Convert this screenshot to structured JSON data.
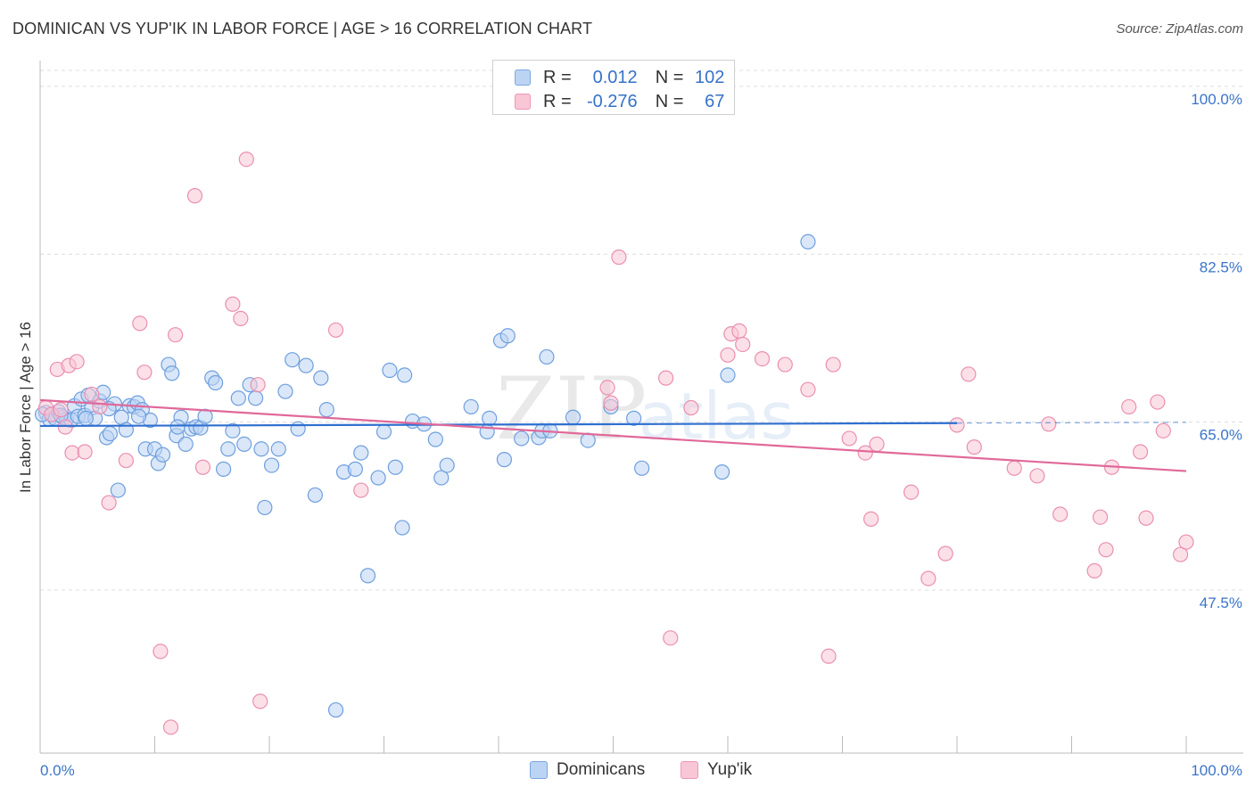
{
  "title": "DOMINICAN VS YUP'IK IN LABOR FORCE | AGE > 16 CORRELATION CHART",
  "source": "Source: ZipAtlas.com",
  "watermark": {
    "part1": "ZIP",
    "part2": "atlas"
  },
  "legend": {
    "r_label": "R =",
    "n_label": "N =",
    "rows": [
      {
        "series": "Dominicans",
        "r": "0.012",
        "n": "102"
      },
      {
        "series": "Yup'ik",
        "r": "-0.276",
        "n": "67"
      }
    ]
  },
  "bottom_legend": [
    "Dominicans",
    "Yup'ik"
  ],
  "colors": {
    "dominicans_fill": "#bcd4f4",
    "dominicans_stroke": "#6e9fde",
    "dominicans_line": "#2f6fcf",
    "yupik_fill": "#f9c6d6",
    "yupik_stroke": "#ea8fb0",
    "yupik_line": "#e0699a",
    "axis_text": "#3a74c8",
    "grid": "#dcdcdc"
  },
  "chart_data": {
    "type": "scatter",
    "title": "DOMINICAN VS YUP'IK IN LABOR FORCE | AGE > 16 CORRELATION CHART",
    "xlabel": "",
    "ylabel": "In Labor Force | Age > 16",
    "x_tick_labels": [
      "0.0%",
      "100.0%"
    ],
    "y_tick_labels": [
      "100.0%",
      "82.5%",
      "65.0%",
      "47.5%"
    ],
    "y_ticks": [
      100.0,
      82.5,
      65.0,
      47.5
    ],
    "xlim": [
      0,
      100
    ],
    "ylim": [
      30.5,
      102.5
    ],
    "series": [
      {
        "name": "Dominicans",
        "r": 0.012,
        "n": 102,
        "trend": {
          "x": [
            0,
            80
          ],
          "y": [
            64.6,
            64.9
          ]
        },
        "points": [
          [
            0.5,
            66.0
          ],
          [
            0.8,
            65.3
          ],
          [
            1.0,
            65.8
          ],
          [
            1.3,
            65.4
          ],
          [
            1.6,
            66.1
          ],
          [
            2.0,
            65.5
          ],
          [
            2.3,
            65.3
          ],
          [
            2.7,
            65.2
          ],
          [
            3.0,
            66.7
          ],
          [
            3.3,
            65.6
          ],
          [
            3.6,
            67.4
          ],
          [
            3.9,
            65.7
          ],
          [
            4.2,
            67.8
          ],
          [
            4.5,
            66.5
          ],
          [
            4.8,
            65.4
          ],
          [
            5.2,
            67.2
          ],
          [
            5.5,
            68.1
          ],
          [
            5.8,
            63.4
          ],
          [
            6.1,
            63.8
          ],
          [
            6.5,
            66.9
          ],
          [
            6.8,
            57.9
          ],
          [
            7.1,
            65.5
          ],
          [
            7.5,
            64.2
          ],
          [
            7.8,
            66.7
          ],
          [
            8.2,
            66.6
          ],
          [
            8.5,
            67.0
          ],
          [
            8.9,
            66.3
          ],
          [
            9.2,
            62.2
          ],
          [
            9.6,
            65.2
          ],
          [
            10.0,
            62.2
          ],
          [
            10.3,
            60.7
          ],
          [
            10.7,
            61.6
          ],
          [
            11.2,
            71.0
          ],
          [
            11.5,
            70.1
          ],
          [
            11.9,
            63.6
          ],
          [
            12.3,
            65.5
          ],
          [
            12.7,
            62.7
          ],
          [
            13.2,
            64.3
          ],
          [
            13.6,
            64.5
          ],
          [
            14.0,
            64.4
          ],
          [
            14.4,
            65.6
          ],
          [
            15.0,
            69.6
          ],
          [
            15.3,
            69.1
          ],
          [
            16.0,
            60.1
          ],
          [
            16.4,
            62.2
          ],
          [
            16.8,
            64.1
          ],
          [
            17.3,
            67.5
          ],
          [
            17.8,
            62.7
          ],
          [
            18.3,
            68.9
          ],
          [
            18.8,
            67.5
          ],
          [
            19.3,
            62.2
          ],
          [
            19.6,
            56.1
          ],
          [
            20.2,
            60.5
          ],
          [
            20.8,
            62.2
          ],
          [
            21.4,
            68.2
          ],
          [
            22.0,
            71.5
          ],
          [
            22.5,
            64.3
          ],
          [
            23.2,
            70.9
          ],
          [
            24.0,
            57.4
          ],
          [
            24.5,
            69.6
          ],
          [
            25.0,
            66.3
          ],
          [
            25.8,
            35.0
          ],
          [
            26.5,
            59.8
          ],
          [
            27.5,
            60.1
          ],
          [
            28.0,
            61.8
          ],
          [
            28.6,
            49.0
          ],
          [
            29.5,
            59.2
          ],
          [
            30.0,
            64.0
          ],
          [
            30.5,
            70.4
          ],
          [
            31.0,
            60.3
          ],
          [
            31.6,
            54.0
          ],
          [
            31.8,
            69.9
          ],
          [
            32.5,
            65.1
          ],
          [
            33.5,
            64.8
          ],
          [
            34.5,
            63.2
          ],
          [
            35.0,
            59.2
          ],
          [
            35.5,
            60.5
          ],
          [
            37.6,
            66.6
          ],
          [
            39.0,
            64.0
          ],
          [
            39.2,
            65.4
          ],
          [
            40.2,
            73.5
          ],
          [
            40.5,
            61.1
          ],
          [
            40.8,
            74.0
          ],
          [
            42.0,
            63.3
          ],
          [
            43.5,
            63.4
          ],
          [
            43.8,
            64.1
          ],
          [
            44.2,
            71.8
          ],
          [
            44.5,
            64.1
          ],
          [
            46.5,
            65.5
          ],
          [
            47.8,
            63.1
          ],
          [
            49.8,
            66.6
          ],
          [
            51.8,
            65.4
          ],
          [
            52.5,
            60.2
          ],
          [
            59.5,
            59.8
          ],
          [
            60.0,
            69.9
          ],
          [
            67.0,
            83.8
          ],
          [
            0.2,
            65.8
          ],
          [
            1.8,
            65.7
          ],
          [
            4.0,
            65.4
          ],
          [
            6.0,
            66.4
          ],
          [
            8.6,
            65.6
          ],
          [
            12.0,
            64.5
          ]
        ]
      },
      {
        "name": "Yup'ik",
        "r": -0.276,
        "n": 67,
        "trend": {
          "x": [
            0,
            100
          ],
          "y": [
            67.3,
            59.9
          ]
        },
        "points": [
          [
            0.5,
            66.5
          ],
          [
            1.0,
            65.8
          ],
          [
            1.5,
            70.5
          ],
          [
            1.8,
            66.3
          ],
          [
            2.2,
            64.5
          ],
          [
            2.5,
            70.9
          ],
          [
            2.8,
            61.8
          ],
          [
            3.2,
            71.3
          ],
          [
            3.9,
            61.9
          ],
          [
            4.5,
            67.9
          ],
          [
            5.2,
            66.6
          ],
          [
            6.0,
            56.6
          ],
          [
            7.5,
            61.0
          ],
          [
            8.7,
            75.3
          ],
          [
            9.1,
            70.2
          ],
          [
            10.5,
            41.1
          ],
          [
            11.4,
            33.2
          ],
          [
            11.8,
            74.1
          ],
          [
            13.5,
            88.6
          ],
          [
            14.2,
            60.3
          ],
          [
            16.8,
            77.3
          ],
          [
            17.5,
            75.8
          ],
          [
            18.0,
            92.4
          ],
          [
            19.0,
            68.9
          ],
          [
            19.2,
            35.9
          ],
          [
            25.8,
            74.6
          ],
          [
            28.0,
            57.9
          ],
          [
            49.5,
            68.6
          ],
          [
            49.8,
            67.0
          ],
          [
            50.5,
            82.2
          ],
          [
            54.6,
            69.6
          ],
          [
            55.0,
            42.5
          ],
          [
            56.8,
            66.5
          ],
          [
            60.0,
            72.0
          ],
          [
            60.3,
            74.2
          ],
          [
            61.0,
            74.5
          ],
          [
            61.3,
            73.1
          ],
          [
            63.0,
            71.6
          ],
          [
            65.0,
            71.0
          ],
          [
            67.0,
            68.4
          ],
          [
            68.8,
            40.6
          ],
          [
            69.2,
            71.0
          ],
          [
            70.6,
            63.3
          ],
          [
            72.0,
            61.8
          ],
          [
            72.5,
            54.9
          ],
          [
            73.0,
            62.7
          ],
          [
            76.0,
            57.7
          ],
          [
            77.5,
            48.7
          ],
          [
            79.0,
            51.3
          ],
          [
            80.0,
            64.7
          ],
          [
            81.0,
            70.0
          ],
          [
            81.5,
            62.4
          ],
          [
            85.0,
            60.2
          ],
          [
            87.0,
            59.4
          ],
          [
            88.0,
            64.8
          ],
          [
            89.0,
            55.4
          ],
          [
            92.0,
            49.5
          ],
          [
            92.5,
            55.1
          ],
          [
            93.0,
            51.7
          ],
          [
            93.5,
            60.3
          ],
          [
            95.0,
            66.6
          ],
          [
            96.0,
            61.9
          ],
          [
            96.5,
            55.0
          ],
          [
            97.5,
            67.1
          ],
          [
            98.0,
            64.1
          ],
          [
            99.5,
            51.2
          ],
          [
            100.0,
            52.5
          ]
        ]
      }
    ]
  }
}
